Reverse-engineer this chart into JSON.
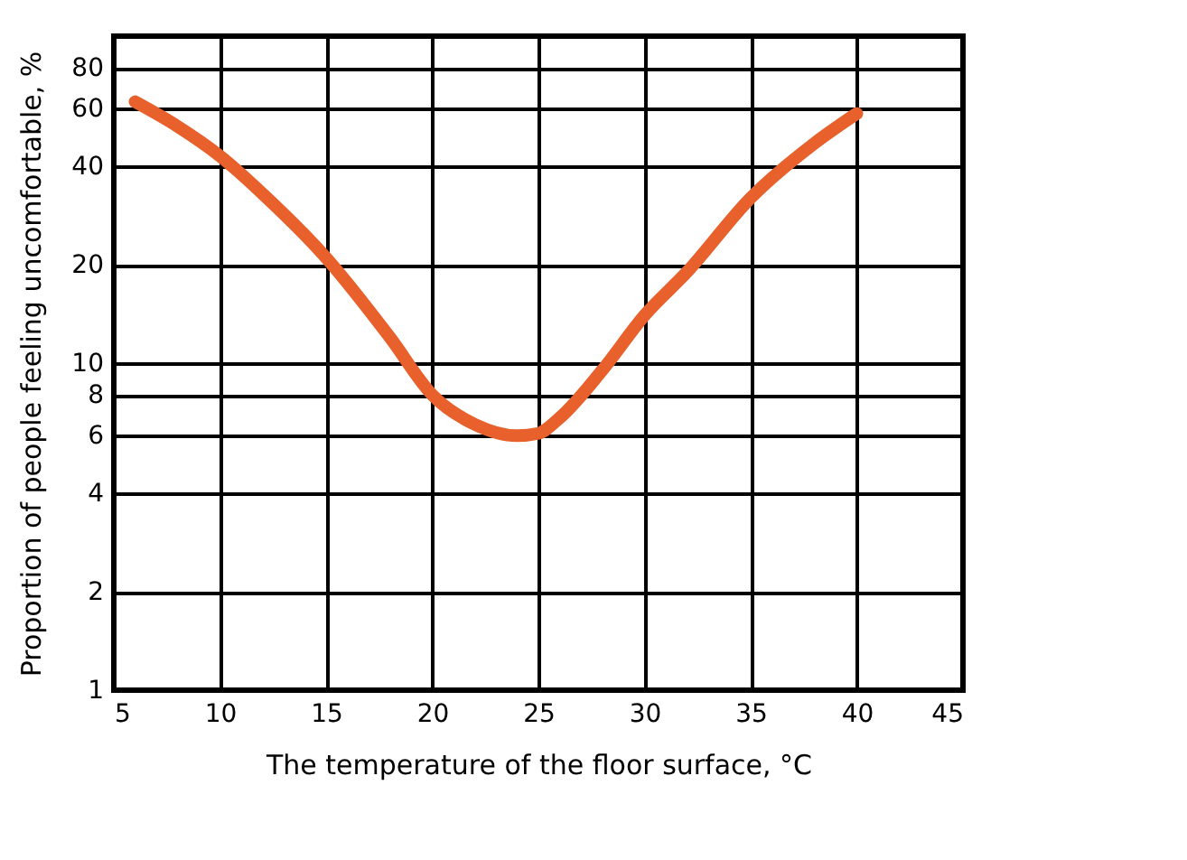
{
  "chart_data": {
    "type": "line",
    "xlabel": "The temperature of the floor surface, °C",
    "ylabel": "Proportion of people feeling uncomfortable, %",
    "x": [
      6,
      8,
      10,
      12,
      15,
      18,
      20,
      22,
      24,
      25,
      26,
      28,
      30,
      32,
      35,
      38,
      40
    ],
    "series": [
      {
        "color": "#e8602c",
        "values": [
          63,
          53,
          43,
          33,
          21,
          12,
          8,
          6.5,
          6,
          6.1,
          6.8,
          9.5,
          14,
          19,
          32,
          47,
          58
        ]
      }
    ],
    "xlim": [
      5,
      45
    ],
    "xticks": [
      5,
      10,
      15,
      20,
      25,
      30,
      35,
      40,
      45
    ],
    "ylim": [
      1,
      100
    ],
    "yticks": [
      1,
      2,
      4,
      6,
      8,
      10,
      20,
      40,
      60,
      80
    ],
    "log": "y",
    "grid": true,
    "marker": "none",
    "line_style": "solid"
  }
}
